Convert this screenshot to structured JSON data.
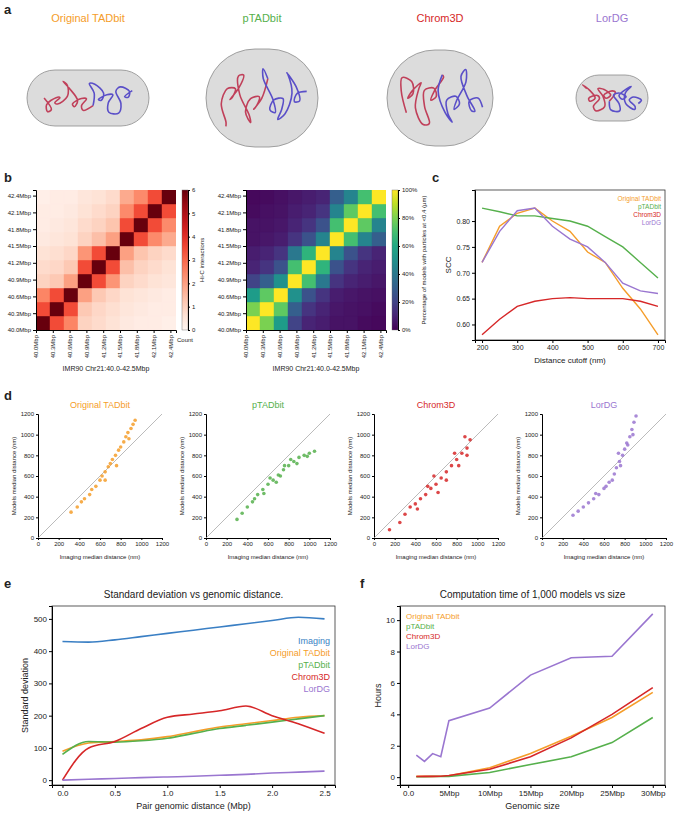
{
  "chart_data": [
    {
      "type": "illustration",
      "panel_label": "a",
      "titles": [
        "Original TADbit",
        "pTADbit",
        "Chrom3D",
        "LorDG"
      ],
      "colors": [
        "#f59d2a",
        "#56b04c",
        "#d62728",
        "#9a76d0"
      ]
    },
    {
      "type": "heatmap",
      "panel_label": "b",
      "xlabel": "IMR90 Chr21:40.0-42.5Mbp",
      "xlim": [
        40,
        42.5
      ],
      "ylim": [
        40,
        42.5
      ],
      "xticks": [
        {
          "value": 40,
          "label": "40.0Mbp"
        },
        {
          "value": 40.3,
          "label": "40.3Mbp"
        },
        {
          "value": 40.6,
          "label": "40.6Mbp"
        },
        {
          "value": 40.9,
          "label": "40.9Mbp"
        },
        {
          "value": 41.2,
          "label": "41.2Mbp"
        },
        {
          "value": 41.5,
          "label": "41.5Mbp"
        },
        {
          "value": 41.8,
          "label": "41.8Mbp"
        },
        {
          "value": 42.1,
          "label": "42.1Mbp"
        },
        {
          "value": 42.4,
          "label": "42.4Mbp"
        }
      ],
      "yticks": [
        {
          "value": 40,
          "label": "40.0Mbp"
        },
        {
          "value": 40.3,
          "label": "40.3Mbp"
        },
        {
          "value": 40.6,
          "label": "40.6Mbp"
        },
        {
          "value": 40.9,
          "label": "40.9Mbp"
        },
        {
          "value": 41.2,
          "label": "41.2Mbp"
        },
        {
          "value": 41.5,
          "label": "41.5Mbp"
        },
        {
          "value": 41.8,
          "label": "41.8Mbp"
        },
        {
          "value": 42.1,
          "label": "42.1Mbp"
        },
        {
          "value": 42.4,
          "label": "42.4Mbp"
        }
      ],
      "bins": [
        40,
        40.25,
        40.5,
        40.75,
        41,
        41.25,
        41.5,
        41.75,
        42,
        42.25,
        42.5
      ],
      "cells": [
        [
          6,
          3.5,
          2.5,
          1,
          0.8,
          0.6,
          0.4,
          0.3,
          0.3,
          0.2
        ],
        [
          3.5,
          6,
          3.5,
          1.2,
          0.9,
          0.7,
          0.5,
          0.4,
          0.3,
          0.3
        ],
        [
          2.5,
          3.5,
          6,
          2,
          1.2,
          0.9,
          0.6,
          0.5,
          0.4,
          0.3
        ],
        [
          1,
          1.2,
          2,
          6,
          3.5,
          2.2,
          1,
          0.8,
          0.6,
          0.5
        ],
        [
          0.8,
          0.9,
          1.2,
          3.5,
          6,
          3.5,
          1.4,
          1,
          0.8,
          0.6
        ],
        [
          0.6,
          0.7,
          0.9,
          2.2,
          3.5,
          6,
          2,
          1.3,
          1,
          0.8
        ],
        [
          0.4,
          0.5,
          0.6,
          1,
          1.4,
          2,
          6,
          3.5,
          2.4,
          1.8
        ],
        [
          0.3,
          0.4,
          0.5,
          0.8,
          1,
          1.3,
          3.5,
          6,
          3.5,
          2.4
        ],
        [
          0.3,
          0.3,
          0.4,
          0.6,
          0.8,
          1,
          2.4,
          3.5,
          6,
          3.5
        ],
        [
          0.2,
          0.3,
          0.3,
          0.5,
          0.6,
          0.8,
          1.8,
          2.4,
          3.5,
          6
        ]
      ],
      "colorbar_label": "Hi-C interactions",
      "colorbar_note": "Count",
      "colorbar_range": [
        0,
        6
      ],
      "colorbar_ticks": [
        0,
        1,
        2,
        3,
        4,
        5,
        6
      ]
    },
    {
      "type": "heatmap",
      "xlabel": "IMR90 Chr21:40.0-42.5Mbp",
      "xlim": [
        40,
        42.5
      ],
      "ylim": [
        40,
        42.5
      ],
      "xticks": [
        {
          "value": 40,
          "label": "40.0Mbp"
        },
        {
          "value": 40.3,
          "label": "40.3Mbp"
        },
        {
          "value": 40.6,
          "label": "40.6Mbp"
        },
        {
          "value": 40.9,
          "label": "40.9Mbp"
        },
        {
          "value": 41.2,
          "label": "41.2Mbp"
        },
        {
          "value": 41.5,
          "label": "41.5Mbp"
        },
        {
          "value": 41.8,
          "label": "41.8Mbp"
        },
        {
          "value": 42.1,
          "label": "42.1Mbp"
        },
        {
          "value": 42.4,
          "label": "42.4Mbp"
        }
      ],
      "yticks": [
        {
          "value": 40,
          "label": "40.0Mbp"
        },
        {
          "value": 40.3,
          "label": "40.3Mbp"
        },
        {
          "value": 40.6,
          "label": "40.6Mbp"
        },
        {
          "value": 40.9,
          "label": "40.9Mbp"
        },
        {
          "value": 41.2,
          "label": "41.2Mbp"
        },
        {
          "value": 41.5,
          "label": "41.5Mbp"
        },
        {
          "value": 41.8,
          "label": "41.8Mbp"
        },
        {
          "value": 42.1,
          "label": "42.1Mbp"
        },
        {
          "value": 42.4,
          "label": "42.4Mbp"
        }
      ],
      "bins": [
        40,
        40.25,
        40.5,
        40.75,
        41,
        41.25,
        41.5,
        41.75,
        42,
        42.25,
        42.5
      ],
      "cells": [
        [
          100,
          80,
          55,
          20,
          10,
          8,
          5,
          5,
          3,
          2
        ],
        [
          80,
          100,
          75,
          30,
          15,
          10,
          6,
          5,
          4,
          3
        ],
        [
          55,
          75,
          100,
          50,
          25,
          15,
          8,
          6,
          5,
          4
        ],
        [
          20,
          30,
          50,
          100,
          70,
          40,
          15,
          10,
          8,
          6
        ],
        [
          10,
          15,
          25,
          70,
          100,
          65,
          25,
          15,
          10,
          8
        ],
        [
          8,
          10,
          15,
          40,
          65,
          100,
          45,
          25,
          15,
          10
        ],
        [
          5,
          6,
          8,
          15,
          25,
          45,
          100,
          70,
          45,
          30
        ],
        [
          5,
          5,
          6,
          10,
          15,
          25,
          70,
          100,
          75,
          45
        ],
        [
          3,
          4,
          5,
          8,
          10,
          15,
          45,
          75,
          100,
          70
        ],
        [
          2,
          3,
          4,
          6,
          8,
          10,
          30,
          45,
          70,
          100
        ]
      ],
      "colorbar_label": "Percentage of models with particles at <0.4 (µm)",
      "colorbar_range": [
        0,
        100
      ],
      "colorbar_ticks": [
        {
          "value": 0,
          "label": "0%"
        },
        {
          "value": 20,
          "label": "20%"
        },
        {
          "value": 40,
          "label": "40%"
        },
        {
          "value": 60,
          "label": "60%"
        },
        {
          "value": 80,
          "label": "80%"
        },
        {
          "value": 100,
          "label": "100%"
        }
      ]
    },
    {
      "type": "line",
      "panel_label": "c",
      "xlabel": "Distance cutoff (nm)",
      "ylabel": "SCC",
      "x": [
        200,
        250,
        300,
        350,
        400,
        450,
        500,
        550,
        600,
        650,
        700
      ],
      "xlim": [
        180,
        720
      ],
      "ylim": [
        0.57,
        0.86
      ],
      "xticks": [
        200,
        300,
        400,
        500,
        600,
        700
      ],
      "yticks": [
        {
          "value": 0.6,
          "label": "0.60"
        },
        0.65,
        {
          "value": 0.7,
          "label": "0.70"
        },
        0.75,
        {
          "value": 0.8,
          "label": "0.80"
        }
      ],
      "legend": "upper right",
      "series": [
        {
          "name": "Original TADbit",
          "color": "#f59d2a",
          "values": [
            0.72,
            0.79,
            0.815,
            0.825,
            0.8,
            0.78,
            0.74,
            0.72,
            0.67,
            0.63,
            0.58
          ]
        },
        {
          "name": "pTADbit",
          "color": "#56b04c",
          "values": [
            0.825,
            0.818,
            0.81,
            0.81,
            0.805,
            0.8,
            0.79,
            0.77,
            0.75,
            0.72,
            0.69
          ]
        },
        {
          "name": "Chrom3D",
          "color": "#d62728",
          "values": [
            0.58,
            0.61,
            0.635,
            0.645,
            0.65,
            0.652,
            0.65,
            0.65,
            0.65,
            0.645,
            0.635
          ]
        },
        {
          "name": "LorDG",
          "color": "#9a76d0",
          "values": [
            0.72,
            0.78,
            0.82,
            0.825,
            0.79,
            0.765,
            0.75,
            0.72,
            0.68,
            0.665,
            0.66
          ]
        }
      ]
    },
    {
      "type": "scatter",
      "panel_label": "d",
      "title": "Original TADbit",
      "color": "#f59d2a",
      "xlabel": "Imaging median distance (nm)",
      "ylabel": "Models median distance (nm)",
      "xlim": [
        0,
        1200
      ],
      "ylim": [
        0,
        1200
      ],
      "xticks": [
        0,
        200,
        400,
        600,
        800,
        1000,
        1200
      ],
      "yticks": [
        0,
        200,
        400,
        600,
        800,
        1000,
        1200
      ],
      "x": [
        320,
        380,
        420,
        450,
        500,
        520,
        560,
        600,
        620,
        650,
        680,
        700,
        720,
        750,
        780,
        800,
        830,
        850,
        870,
        900,
        920,
        940,
        880,
        760,
        650
      ],
      "values": [
        250,
        300,
        350,
        380,
        420,
        470,
        500,
        560,
        600,
        640,
        690,
        720,
        760,
        800,
        850,
        880,
        930,
        980,
        1020,
        1060,
        1100,
        1140,
        960,
        700,
        560
      ]
    },
    {
      "type": "scatter",
      "title": "pTADbit",
      "color": "#56b04c",
      "xlabel": "Imaging median distance (nm)",
      "ylabel": "Models median distance (nm)",
      "xlim": [
        0,
        1200
      ],
      "ylim": [
        0,
        1200
      ],
      "xticks": [
        0,
        200,
        400,
        600,
        800,
        1000,
        1200
      ],
      "yticks": [
        0,
        200,
        400,
        600,
        800,
        1000,
        1200
      ],
      "x": [
        300,
        350,
        400,
        450,
        500,
        550,
        600,
        650,
        700,
        750,
        800,
        850,
        900,
        950,
        1000,
        1050,
        620,
        720,
        820,
        560,
        470,
        880,
        980,
        680,
        760
      ],
      "values": [
        180,
        240,
        300,
        350,
        420,
        470,
        520,
        560,
        610,
        660,
        700,
        740,
        780,
        800,
        820,
        840,
        580,
        600,
        760,
        430,
        380,
        720,
        790,
        540,
        700
      ]
    },
    {
      "type": "scatter",
      "title": "Chrom3D",
      "color": "#d62728",
      "xlabel": "Imaging median distance (nm)",
      "ylabel": "Models median distance (nm)",
      "xlim": [
        0,
        1200
      ],
      "ylim": [
        0,
        1200
      ],
      "xticks": [
        0,
        200,
        400,
        600,
        800,
        1000,
        1200
      ],
      "yticks": [
        0,
        200,
        400,
        600,
        800,
        1000,
        1200
      ],
      "x": [
        150,
        250,
        300,
        350,
        400,
        450,
        500,
        550,
        600,
        650,
        700,
        750,
        800,
        850,
        900,
        930,
        880,
        620,
        700,
        780,
        520,
        420,
        820,
        900,
        580
      ],
      "values": [
        80,
        150,
        230,
        300,
        330,
        380,
        420,
        480,
        520,
        580,
        640,
        700,
        760,
        820,
        870,
        950,
        980,
        440,
        560,
        820,
        500,
        280,
        700,
        800,
        600
      ]
    },
    {
      "type": "scatter",
      "title": "LorDG",
      "color": "#9a76d0",
      "xlabel": "Imaging median distance (nm)",
      "ylabel": "Models median distance (nm)",
      "xlim": [
        0,
        1200
      ],
      "ylim": [
        0,
        1200
      ],
      "xticks": [
        0,
        200,
        400,
        600,
        800,
        1000,
        1200
      ],
      "yticks": [
        0,
        200,
        400,
        600,
        800,
        1000,
        1200
      ],
      "x": [
        300,
        350,
        400,
        450,
        500,
        550,
        600,
        650,
        700,
        720,
        750,
        780,
        800,
        820,
        850,
        870,
        890,
        910,
        680,
        760,
        620,
        830,
        520,
        880,
        740
      ],
      "values": [
        220,
        260,
        300,
        340,
        380,
        420,
        480,
        540,
        620,
        680,
        740,
        800,
        860,
        920,
        980,
        1050,
        1120,
        1180,
        560,
        700,
        500,
        900,
        430,
        1000,
        820
      ]
    },
    {
      "type": "line",
      "panel_label": "e",
      "title": "Standard deviation vs genomic distance.",
      "xlabel": "Pair genomic distance (Mbp)",
      "ylabel": "Standard deviation",
      "x": [
        0,
        0.25,
        0.5,
        0.75,
        1,
        1.25,
        1.5,
        1.75,
        2,
        2.25,
        2.5
      ],
      "xlim": [
        -0.1,
        2.6
      ],
      "ylim": [
        -15,
        540
      ],
      "xticks": [
        {
          "value": 0,
          "label": "0.0"
        },
        0.5,
        {
          "value": 1,
          "label": "1.0"
        },
        1.5,
        {
          "value": 2,
          "label": "2.0"
        },
        2.5
      ],
      "yticks": [
        0,
        100,
        200,
        300,
        400,
        500
      ],
      "legend": "right",
      "series": [
        {
          "name": "Imaging",
          "color": "#3a7fc4",
          "values": [
            430,
            428,
            435,
            445,
            455,
            465,
            475,
            485,
            495,
            505,
            500
          ]
        },
        {
          "name": "Original TADbit",
          "color": "#f59d2a",
          "values": [
            90,
            115,
            120,
            125,
            135,
            150,
            165,
            175,
            185,
            195,
            200
          ]
        },
        {
          "name": "pTADbit",
          "color": "#56b04c",
          "values": [
            80,
            120,
            118,
            122,
            130,
            145,
            160,
            170,
            180,
            190,
            200
          ]
        },
        {
          "name": "Chrom3D",
          "color": "#d62728",
          "values": [
            0,
            100,
            120,
            160,
            195,
            205,
            215,
            230,
            200,
            175,
            145
          ]
        },
        {
          "name": "LorDG",
          "color": "#9a76d0",
          "values": [
            0,
            3,
            5,
            8,
            10,
            12,
            15,
            18,
            22,
            25,
            28
          ]
        }
      ]
    },
    {
      "type": "line",
      "panel_label": "f",
      "title": "Computation time of 1,000 models vs size",
      "xlabel": "Genomic size",
      "ylabel": "Hours",
      "x": [
        1,
        2,
        3,
        4,
        5,
        10,
        15,
        20,
        25,
        30
      ],
      "xlim": [
        -1,
        31.5
      ],
      "ylim": [
        -0.5,
        10.9
      ],
      "xticks": [
        {
          "value": 0,
          "label": "0.0"
        },
        {
          "value": 5,
          "label": "5Mbp"
        },
        {
          "value": 10,
          "label": "10Mbp"
        },
        {
          "value": 15,
          "label": "15Mbp"
        },
        {
          "value": 20,
          "label": "20Mbp"
        },
        {
          "value": 25,
          "label": "25Mbp"
        },
        {
          "value": 30,
          "label": "30Mbp"
        }
      ],
      "yticks": [
        0,
        2,
        4,
        6,
        8,
        10
      ],
      "legend": "upper left",
      "series": [
        {
          "name": "Original TADbit",
          "color": "#f59d2a",
          "values": [
            0.05,
            0.05,
            0.05,
            0.06,
            0.08,
            0.6,
            1.5,
            2.6,
            3.8,
            5.4
          ]
        },
        {
          "name": "pTADbit",
          "color": "#56b04c",
          "values": [
            0.03,
            0.03,
            0.04,
            0.04,
            0.05,
            0.3,
            0.8,
            1.3,
            2.2,
            3.8
          ]
        },
        {
          "name": "Chrom3D",
          "color": "#d62728",
          "values": [
            0.04,
            0.05,
            0.05,
            0.06,
            0.1,
            0.5,
            1.3,
            2.5,
            4.0,
            5.7
          ]
        },
        {
          "name": "LorDG",
          "color": "#9a76d0",
          "values": [
            1.4,
            1.0,
            1.5,
            1.3,
            3.6,
            4.4,
            6.5,
            7.6,
            7.7,
            10.4
          ]
        }
      ]
    }
  ]
}
